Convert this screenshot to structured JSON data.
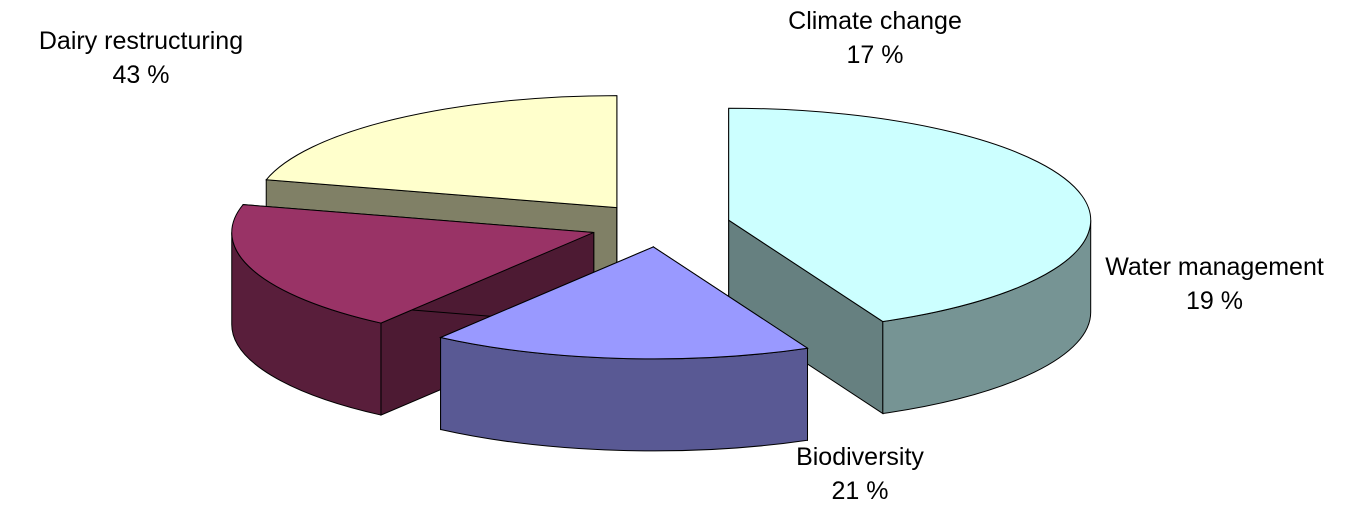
{
  "chart_data": {
    "type": "pie",
    "style": "3d-exploded",
    "slices": [
      {
        "label": "Dairy restructuring",
        "value": 43,
        "value_label": "43 %",
        "color": "#CCFFFF"
      },
      {
        "label": "Climate change",
        "value": 17,
        "value_label": "17 %",
        "color": "#9999FF"
      },
      {
        "label": "Water management",
        "value": 19,
        "value_label": "19 %",
        "color": "#993366"
      },
      {
        "label": "Biodiversity",
        "value": 21,
        "value_label": "21 %",
        "color": "#FFFFCC"
      }
    ],
    "title": "",
    "legend": "none"
  }
}
